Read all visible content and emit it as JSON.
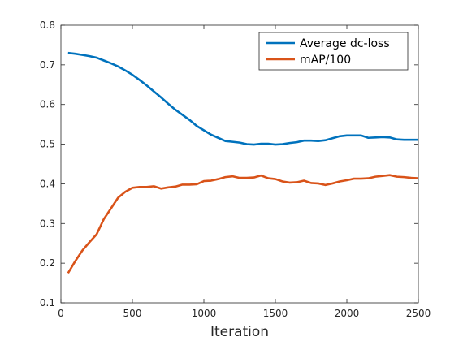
{
  "chart_data": {
    "type": "line",
    "xlabel": "Iteration",
    "ylabel": "",
    "xlim": [
      0,
      2500
    ],
    "ylim": [
      0.1,
      0.8
    ],
    "xticks": [
      0,
      500,
      1000,
      1500,
      2000,
      2500
    ],
    "yticks": [
      0.1,
      0.2,
      0.3,
      0.4,
      0.5,
      0.6,
      0.7,
      0.8
    ],
    "grid": false,
    "legend_position": "top-right",
    "x": [
      50,
      100,
      150,
      200,
      250,
      300,
      350,
      400,
      450,
      500,
      550,
      600,
      650,
      700,
      750,
      800,
      850,
      900,
      950,
      1000,
      1050,
      1100,
      1150,
      1200,
      1250,
      1300,
      1350,
      1400,
      1450,
      1500,
      1550,
      1600,
      1650,
      1700,
      1750,
      1800,
      1850,
      1900,
      1950,
      2000,
      2050,
      2100,
      2150,
      2200,
      2250,
      2300,
      2350,
      2400,
      2450,
      2500
    ],
    "series": [
      {
        "name": "Average dc-loss",
        "color": "#0072BD",
        "values": [
          0.73,
          0.728,
          0.725,
          0.722,
          0.718,
          0.711,
          0.704,
          0.696,
          0.686,
          0.675,
          0.662,
          0.648,
          0.633,
          0.618,
          0.602,
          0.587,
          0.574,
          0.561,
          0.546,
          0.535,
          0.524,
          0.516,
          0.508,
          0.506,
          0.504,
          0.5,
          0.499,
          0.501,
          0.501,
          0.499,
          0.5,
          0.503,
          0.505,
          0.509,
          0.509,
          0.508,
          0.51,
          0.515,
          0.52,
          0.522,
          0.522,
          0.522,
          0.516,
          0.517,
          0.518,
          0.517,
          0.512,
          0.511,
          0.511,
          0.511
        ]
      },
      {
        "name": "mAP/100",
        "color": "#D95319",
        "values": [
          0.175,
          0.205,
          0.232,
          0.253,
          0.273,
          0.311,
          0.338,
          0.365,
          0.38,
          0.39,
          0.392,
          0.392,
          0.394,
          0.388,
          0.391,
          0.393,
          0.398,
          0.398,
          0.399,
          0.407,
          0.408,
          0.412,
          0.417,
          0.419,
          0.415,
          0.415,
          0.416,
          0.421,
          0.414,
          0.412,
          0.406,
          0.403,
          0.404,
          0.408,
          0.402,
          0.401,
          0.397,
          0.401,
          0.406,
          0.409,
          0.413,
          0.413,
          0.414,
          0.418,
          0.42,
          0.422,
          0.418,
          0.417,
          0.415,
          0.414
        ]
      }
    ]
  }
}
